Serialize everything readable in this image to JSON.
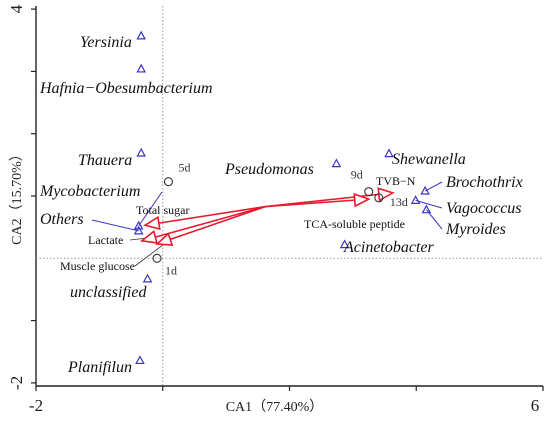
{
  "chart_data": {
    "type": "scatter",
    "title": "",
    "xlabel": "CA1（77.40%）",
    "ylabel": "CA2（15.70%）",
    "xlim": [
      -2,
      6
    ],
    "ylim": [
      -2.05,
      4.05
    ],
    "xticks": [
      {
        "value": -2,
        "label": "-2"
      },
      {
        "value": 6,
        "label": "6"
      }
    ],
    "yticks": [
      {
        "value": 4,
        "label": "4"
      },
      {
        "value": -2,
        "label": "-2"
      }
    ],
    "minor_yticks": [
      3.0,
      2.0,
      1.0,
      -1.0
    ],
    "minor_xticks": [
      0.0,
      2.0,
      4.0
    ],
    "reference_lines": {
      "x": 0,
      "y": 0
    },
    "taxa": [
      {
        "label": "Yersinia",
        "x": -0.34,
        "y": 3.57
      },
      {
        "label": "Hafnia−Obesumbacterium",
        "x": -0.34,
        "y": 3.04
      },
      {
        "label": "Thauera",
        "x": -0.34,
        "y": 1.69
      },
      {
        "label": "Mycobacterium",
        "x": -0.38,
        "y": 0.52
      },
      {
        "label": "Others",
        "x": -0.38,
        "y": 0.44
      },
      {
        "label": "unclassified",
        "x": -0.24,
        "y": -0.33
      },
      {
        "label": "Planifilun",
        "x": -0.36,
        "y": -1.64
      },
      {
        "label": "Pseudomonas",
        "x": 2.74,
        "y": 1.52
      },
      {
        "label": "Shewanella",
        "x": 3.57,
        "y": 1.68
      },
      {
        "label": "Brochothrix",
        "x": 4.14,
        "y": 1.08
      },
      {
        "label": "Vagococcus",
        "x": 3.99,
        "y": 0.93
      },
      {
        "label": "Myroides",
        "x": 4.16,
        "y": 0.78
      },
      {
        "label": "Acinetobacter",
        "x": 2.87,
        "y": 0.22
      }
    ],
    "samples": [
      {
        "label": "1d",
        "x": -0.09,
        "y": 0.0
      },
      {
        "label": "5d",
        "x": 0.09,
        "y": 1.23
      },
      {
        "label": "9d",
        "x": 3.25,
        "y": 1.07
      },
      {
        "label": "13d",
        "x": 3.41,
        "y": 0.97
      }
    ],
    "vectors": [
      {
        "label": "TVB−N",
        "x": 3.63,
        "y": 1.05
      },
      {
        "label": "TCA-soluble peptide",
        "x": 3.25,
        "y": 0.95
      },
      {
        "label": "Total sugar",
        "x": -0.28,
        "y": 0.53
      },
      {
        "label": "Lactate",
        "x": -0.33,
        "y": 0.28
      },
      {
        "label": "Muscle glucose",
        "x": -0.09,
        "y": 0.23
      }
    ],
    "vector_origin": {
      "x": 1.62,
      "y": 0.83
    },
    "colors": {
      "taxon_marker": "#3b33c4",
      "vector": "#e8192c",
      "connector": "#3b33c4",
      "sample_marker": "#333333",
      "frame": "#222222",
      "dotted_line": "#999999"
    }
  }
}
